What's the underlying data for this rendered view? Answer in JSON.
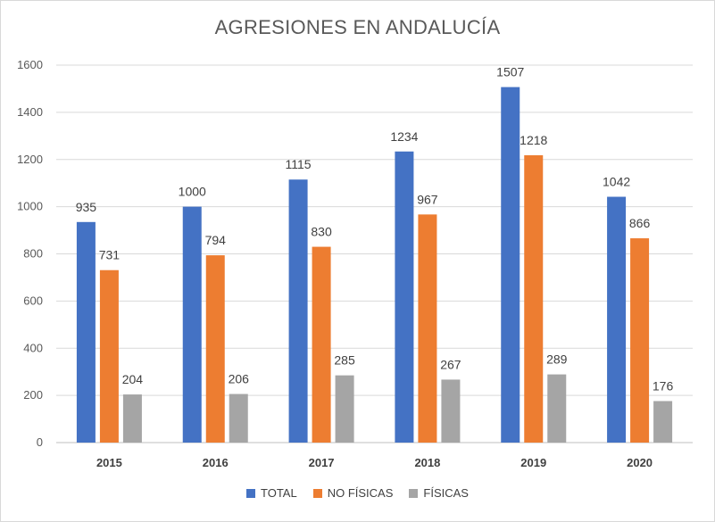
{
  "chart_data": {
    "type": "bar",
    "title": "AGRESIONES EN ANDALUCÍA",
    "categories": [
      "2015",
      "2016",
      "2017",
      "2018",
      "2019",
      "2020"
    ],
    "series": [
      {
        "name": "TOTAL",
        "color": "#4472c4",
        "values": [
          935,
          1000,
          1115,
          1234,
          1507,
          1042
        ]
      },
      {
        "name": "NO FÍSICAS",
        "color": "#ed7d31",
        "values": [
          731,
          794,
          830,
          967,
          1218,
          866
        ]
      },
      {
        "name": "FÍSICAS",
        "color": "#a5a5a5",
        "values": [
          204,
          206,
          285,
          267,
          289,
          176
        ]
      }
    ],
    "ylim": [
      0,
      1600
    ],
    "yticks": [
      "0",
      "200",
      "400",
      "600",
      "800",
      "1000",
      "1200",
      "1400",
      "1600"
    ],
    "grid": true,
    "legend_position": "bottom",
    "data_labels": true
  }
}
